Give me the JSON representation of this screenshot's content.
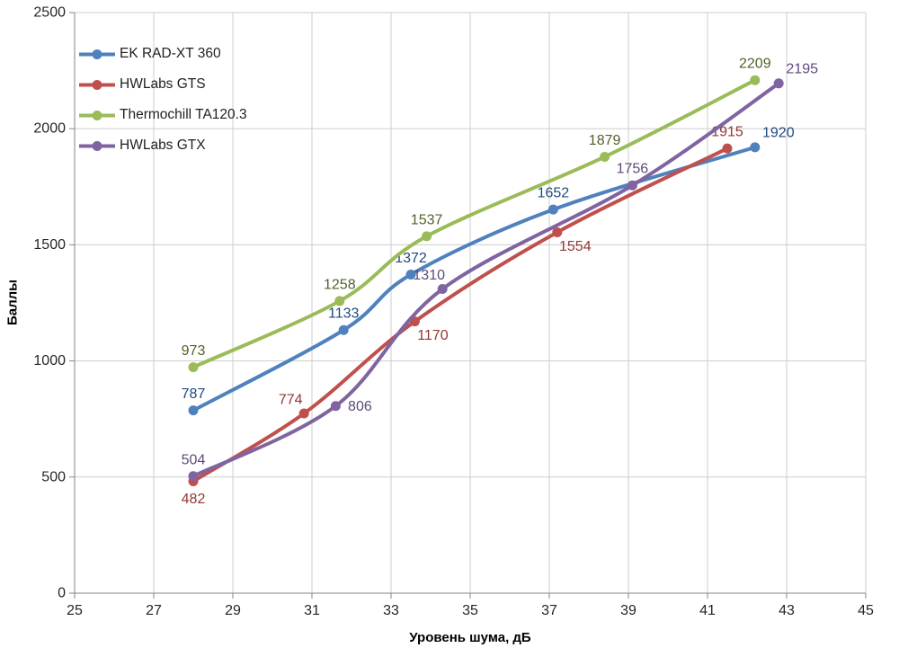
{
  "chart_data": {
    "type": "line",
    "title": "",
    "xlabel": "Уровень шума, дБ",
    "ylabel": "Баллы",
    "xlim": [
      25,
      45
    ],
    "ylim": [
      0,
      2500
    ],
    "x_ticks": [
      25,
      27,
      29,
      31,
      33,
      35,
      37,
      39,
      41,
      43,
      45
    ],
    "y_ticks": [
      0,
      500,
      1000,
      1500,
      2000,
      2500
    ],
    "grid": true,
    "smooth_lines": true,
    "legend_position": "top-left-inside",
    "series": [
      {
        "name": "EK RAD-XT 360",
        "color": "#4F81BD",
        "label_color": "#1F497D",
        "points": [
          {
            "x": 28.0,
            "y": 787,
            "label": "787",
            "label_pos": "above"
          },
          {
            "x": 31.8,
            "y": 1133,
            "label": "1133",
            "label_pos": "above"
          },
          {
            "x": 33.5,
            "y": 1372,
            "label": "1372",
            "label_pos": "above"
          },
          {
            "x": 37.1,
            "y": 1652,
            "label": "1652",
            "label_pos": "above"
          },
          {
            "x": 42.2,
            "y": 1920,
            "label": "1920",
            "label_pos": "above-right"
          }
        ]
      },
      {
        "name": "HWLabs GTS",
        "color": "#C0504D",
        "label_color": "#943634",
        "points": [
          {
            "x": 28.0,
            "y": 482,
            "label": "482",
            "label_pos": "below"
          },
          {
            "x": 30.8,
            "y": 774,
            "label": "774",
            "label_pos": "above-left"
          },
          {
            "x": 33.6,
            "y": 1170,
            "label": "1170",
            "label_pos": "below-right"
          },
          {
            "x": 37.2,
            "y": 1554,
            "label": "1554",
            "label_pos": "below-right"
          },
          {
            "x": 41.5,
            "y": 1915,
            "label": "1915",
            "label_pos": "above"
          }
        ]
      },
      {
        "name": "Thermochill TA120.3",
        "color": "#9BBB59",
        "label_color": "#4F6228",
        "points": [
          {
            "x": 28.0,
            "y": 973,
            "label": "973",
            "label_pos": "above"
          },
          {
            "x": 31.7,
            "y": 1258,
            "label": "1258",
            "label_pos": "above"
          },
          {
            "x": 33.9,
            "y": 1537,
            "label": "1537",
            "label_pos": "above"
          },
          {
            "x": 38.4,
            "y": 1879,
            "label": "1879",
            "label_pos": "above"
          },
          {
            "x": 42.2,
            "y": 2209,
            "label": "2209",
            "label_pos": "above"
          }
        ]
      },
      {
        "name": "HWLabs GTX",
        "color": "#8064A2",
        "label_color": "#5F497A",
        "points": [
          {
            "x": 28.0,
            "y": 504,
            "label": "504",
            "label_pos": "above"
          },
          {
            "x": 31.6,
            "y": 806,
            "label": "806",
            "label_pos": "right"
          },
          {
            "x": 34.3,
            "y": 1310,
            "label": "1310",
            "label_pos": "above-left"
          },
          {
            "x": 39.1,
            "y": 1756,
            "label": "1756",
            "label_pos": "above"
          },
          {
            "x": 42.8,
            "y": 2195,
            "label": "2195",
            "label_pos": "above-right"
          }
        ]
      }
    ],
    "styles": {
      "grid_color": "#CDCDCD",
      "axis_color": "#868686",
      "tick_label_color": "#262626",
      "background": "#FFFFFF",
      "line_width": 4,
      "marker_radius": 5.5,
      "tick_font_size": 16,
      "data_label_font_size": 16
    }
  }
}
